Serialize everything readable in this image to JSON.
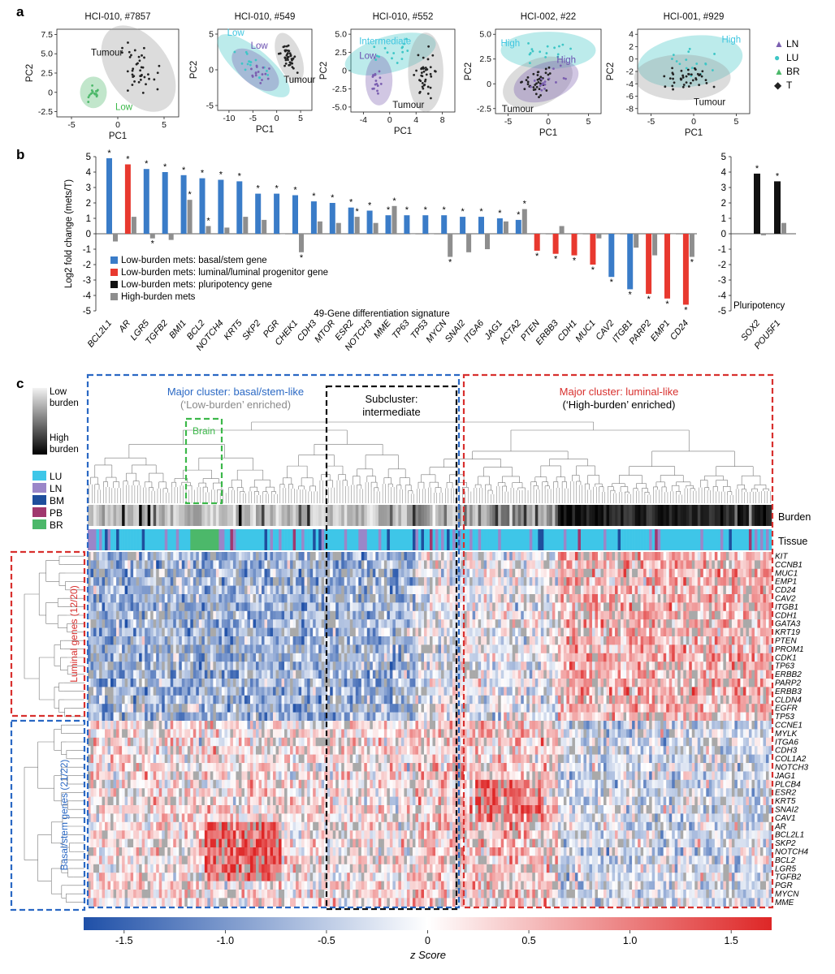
{
  "figure": {
    "panel_a_letter": "a",
    "panel_b_letter": "b",
    "panel_c_letter": "c"
  },
  "colors": {
    "LN": "#7b5fb0",
    "LU": "#3ec6c6",
    "BR": "#4cb86a",
    "T": "#222222",
    "basal": "#3a7cc8",
    "luminal": "#e8392f",
    "pluri": "#111111",
    "high_burden": "#8e8e8e",
    "blue_box": "#2a68c4",
    "red_box": "#d8302e",
    "black_box": "#111111",
    "green_box": "#3cb84a"
  },
  "panel_a": {
    "legend": [
      {
        "symbol": "▲",
        "label": "LN",
        "key": "LN"
      },
      {
        "symbol": "●",
        "label": "LU",
        "key": "LU"
      },
      {
        "symbol": "▲",
        "label": "BR",
        "key": "BR"
      },
      {
        "symbol": "◆",
        "label": "T",
        "key": "T"
      }
    ],
    "plots": [
      {
        "title": "HCI-010, #7857",
        "xlabel": "PC1",
        "ylabel": "PC2",
        "xticks": [
          "-5",
          "0",
          "5"
        ],
        "yticks": [
          "7.5",
          "5.0",
          "2.5",
          "0",
          "-2.5"
        ],
        "labels": [
          {
            "text": "Tumour",
            "color": "#111"
          },
          {
            "text": "Low",
            "color": "#3cb84a"
          }
        ]
      },
      {
        "title": "HCI-010, #549",
        "xlabel": "PC1",
        "ylabel": "PC2",
        "xticks": [
          "-10",
          "-5",
          "0",
          "5"
        ],
        "yticks": [
          "5",
          "0",
          "-5"
        ],
        "labels": [
          {
            "text": "Low",
            "color": "#3ec6e0"
          },
          {
            "text": "Low",
            "color": "#6a4fb0"
          },
          {
            "text": "Tumour",
            "color": "#111"
          }
        ]
      },
      {
        "title": "HCI-010, #552",
        "xlabel": "PC1",
        "ylabel": "PC2",
        "xticks": [
          "-4",
          "0",
          "4",
          "8"
        ],
        "yticks": [
          "5.0",
          "2.5",
          "0",
          "-2.5",
          "-5.0"
        ],
        "labels": [
          {
            "text": "Intermediate",
            "color": "#3ec6e0"
          },
          {
            "text": "Low",
            "color": "#6a4fb0"
          },
          {
            "text": "Tumour",
            "color": "#111"
          }
        ]
      },
      {
        "title": "HCI-002, #22",
        "xlabel": "PC1",
        "ylabel": "PC2",
        "xticks": [
          "-5",
          "0",
          "5"
        ],
        "yticks": [
          "5.0",
          "2.5",
          "0",
          "-2.5"
        ],
        "labels": [
          {
            "text": "High",
            "color": "#3ec6e0"
          },
          {
            "text": "High",
            "color": "#6a4fb0"
          },
          {
            "text": "Tumour",
            "color": "#111"
          }
        ]
      },
      {
        "title": "HCI-001, #929",
        "xlabel": "PC1",
        "ylabel": "PC2",
        "xticks": [
          "-5",
          "0",
          "5"
        ],
        "yticks": [
          "4",
          "2",
          "0",
          "-2",
          "-4",
          "-6",
          "-8"
        ],
        "labels": [
          {
            "text": "High",
            "color": "#3ec6e0"
          },
          {
            "text": "Tumour",
            "color": "#111"
          }
        ]
      }
    ]
  },
  "chart_data": [
    {
      "type": "bar",
      "title": "49-Gene differentiation signature",
      "ylabel": "Log2 fold change (mets/T)",
      "ylim": [
        -5,
        5
      ],
      "yticks": [
        "5",
        "4",
        "3",
        "2",
        "1",
        "0",
        "-1",
        "-2",
        "-3",
        "-4",
        "-5"
      ],
      "categories": [
        "BCL2L1",
        "AR",
        "LGR5",
        "TGFB2",
        "BMI1",
        "BCL2",
        "NOTCH4",
        "KRT5",
        "SKP2",
        "PGR",
        "CHEK1",
        "CDH3",
        "MTOR",
        "ESR2",
        "NOTCH3",
        "MME",
        "TP63",
        "TP53",
        "MYCN",
        "SNAI2",
        "ITGA6",
        "JAG1",
        "ACTA2",
        "PTEN",
        "ERBB3",
        "CDH1",
        "MUC1",
        "CAV2",
        "ITGB1",
        "PARP2",
        "EMP1",
        "CD24"
      ],
      "series": [
        {
          "name": "Low-burden mets",
          "values": [
            4.9,
            4.5,
            4.2,
            4.0,
            3.8,
            3.6,
            3.5,
            3.4,
            2.6,
            2.6,
            2.5,
            2.1,
            2.0,
            1.7,
            1.5,
            1.2,
            1.2,
            1.2,
            1.2,
            1.1,
            1.1,
            1.0,
            0.9,
            -1.1,
            -1.3,
            -1.4,
            -2.0,
            -2.8,
            -3.6,
            -3.9,
            -4.2,
            -4.6
          ],
          "groups": [
            "basal",
            "luminal",
            "basal",
            "basal",
            "basal",
            "basal",
            "basal",
            "basal",
            "basal",
            "basal",
            "basal",
            "basal",
            "basal",
            "basal",
            "basal",
            "basal",
            "basal",
            "basal",
            "basal",
            "basal",
            "basal",
            "basal",
            "basal",
            "luminal",
            "luminal",
            "luminal",
            "luminal",
            "basal",
            "basal",
            "luminal",
            "luminal",
            "luminal"
          ],
          "significant": [
            true,
            true,
            true,
            true,
            true,
            true,
            true,
            true,
            true,
            true,
            true,
            true,
            true,
            true,
            true,
            true,
            true,
            true,
            true,
            true,
            true,
            true,
            true,
            true,
            true,
            true,
            true,
            true,
            true,
            true,
            true,
            true
          ]
        },
        {
          "name": "High-burden mets",
          "values": [
            -0.5,
            1.1,
            -0.3,
            -0.4,
            2.2,
            0.5,
            0.4,
            1.1,
            0.9,
            0.0,
            -1.2,
            0.8,
            0.7,
            1.1,
            0.7,
            1.8,
            0.0,
            0.0,
            -1.5,
            -1.2,
            -1.0,
            0.8,
            1.6,
            0.0,
            0.5,
            0.0,
            -0.3,
            0.0,
            -0.9,
            -1.4,
            0.0,
            -1.5
          ],
          "significant": [
            false,
            false,
            true,
            false,
            true,
            true,
            false,
            false,
            false,
            false,
            true,
            false,
            false,
            true,
            false,
            true,
            false,
            false,
            true,
            false,
            false,
            false,
            true,
            false,
            false,
            false,
            false,
            false,
            false,
            false,
            false,
            true
          ]
        }
      ],
      "legend": [
        {
          "label": "Low-burden mets: basal/stem gene",
          "key": "basal"
        },
        {
          "label": "Low-burden mets: luminal/luminal progenitor gene",
          "key": "luminal"
        },
        {
          "label": "Low-burden mets: pluripotency gene",
          "key": "pluri"
        },
        {
          "label": "High-burden mets",
          "key": "high_burden"
        }
      ]
    },
    {
      "type": "bar",
      "title": "Pluripotency",
      "ylim": [
        -5,
        5
      ],
      "yticks": [
        "5",
        "4",
        "3",
        "2",
        "1",
        "0",
        "-1",
        "-2",
        "-3",
        "-4",
        "-5"
      ],
      "categories": [
        "SOX2",
        "POU5F1"
      ],
      "series": [
        {
          "name": "Low-burden mets",
          "values": [
            3.9,
            3.4
          ],
          "significant": [
            true,
            true
          ]
        },
        {
          "name": "High-burden mets",
          "values": [
            -0.1,
            0.7
          ],
          "significant": [
            false,
            false
          ]
        }
      ]
    },
    {
      "type": "heatmap",
      "xlabel": "z Score",
      "colorbar_ticks": [
        "-1.5",
        "-1.0",
        "-0.5",
        "0",
        "0.5",
        "1.0",
        "1.5"
      ],
      "colorbar_range": [
        -1.7,
        1.7
      ],
      "row_labels": [
        "KIT",
        "CCNB1",
        "MUC1",
        "EMP1",
        "CD24",
        "CAV2",
        "ITGB1",
        "CDH1",
        "GATA3",
        "KRT19",
        "PTEN",
        "PROM1",
        "CDK1",
        "TP63",
        "ERBB2",
        "PARP2",
        "ERBB3",
        "CLDN4",
        "EGFR",
        "TP53",
        "CCNE1",
        "MYLK",
        "ITGA6",
        "CDH3",
        "COL1A2",
        "NOTCH3",
        "JAG1",
        "PLCB4",
        "ESR2",
        "KRT5",
        "SNAI2",
        "CAV1",
        "AR",
        "BCL2L1",
        "SKP2",
        "NOTCH4",
        "BCL2",
        "LGR5",
        "TGFB2",
        "PGR",
        "MYCN",
        "MME"
      ],
      "row_groups": [
        {
          "label": "Luminal genes (12/20)",
          "key": "luminal"
        },
        {
          "label": "Basal/stem genes (21/22)",
          "key": "basal"
        }
      ],
      "clusters": [
        {
          "line1": "Major cluster: basal/stem-like",
          "line2": "(‘Low-burden’ enriched)"
        },
        {
          "line1": "Subcluster:",
          "line2": "intermediate"
        },
        {
          "line1": "Major cluster: luminal-like",
          "line2": "(‘High-burden’ enriched)"
        }
      ],
      "brain_label": "Brain",
      "track_labels": [
        "Burden",
        "Tissue"
      ],
      "burden_legend": [
        "Low",
        "burden",
        "High",
        "burden"
      ],
      "tissue_legend": [
        {
          "label": "LU",
          "color": "#3ec6e8"
        },
        {
          "label": "LN",
          "color": "#9a86c8"
        },
        {
          "label": "BM",
          "color": "#1f4e9c"
        },
        {
          "label": "PB",
          "color": "#a0386e"
        },
        {
          "label": "BR",
          "color": "#4cb86a"
        }
      ]
    }
  ]
}
